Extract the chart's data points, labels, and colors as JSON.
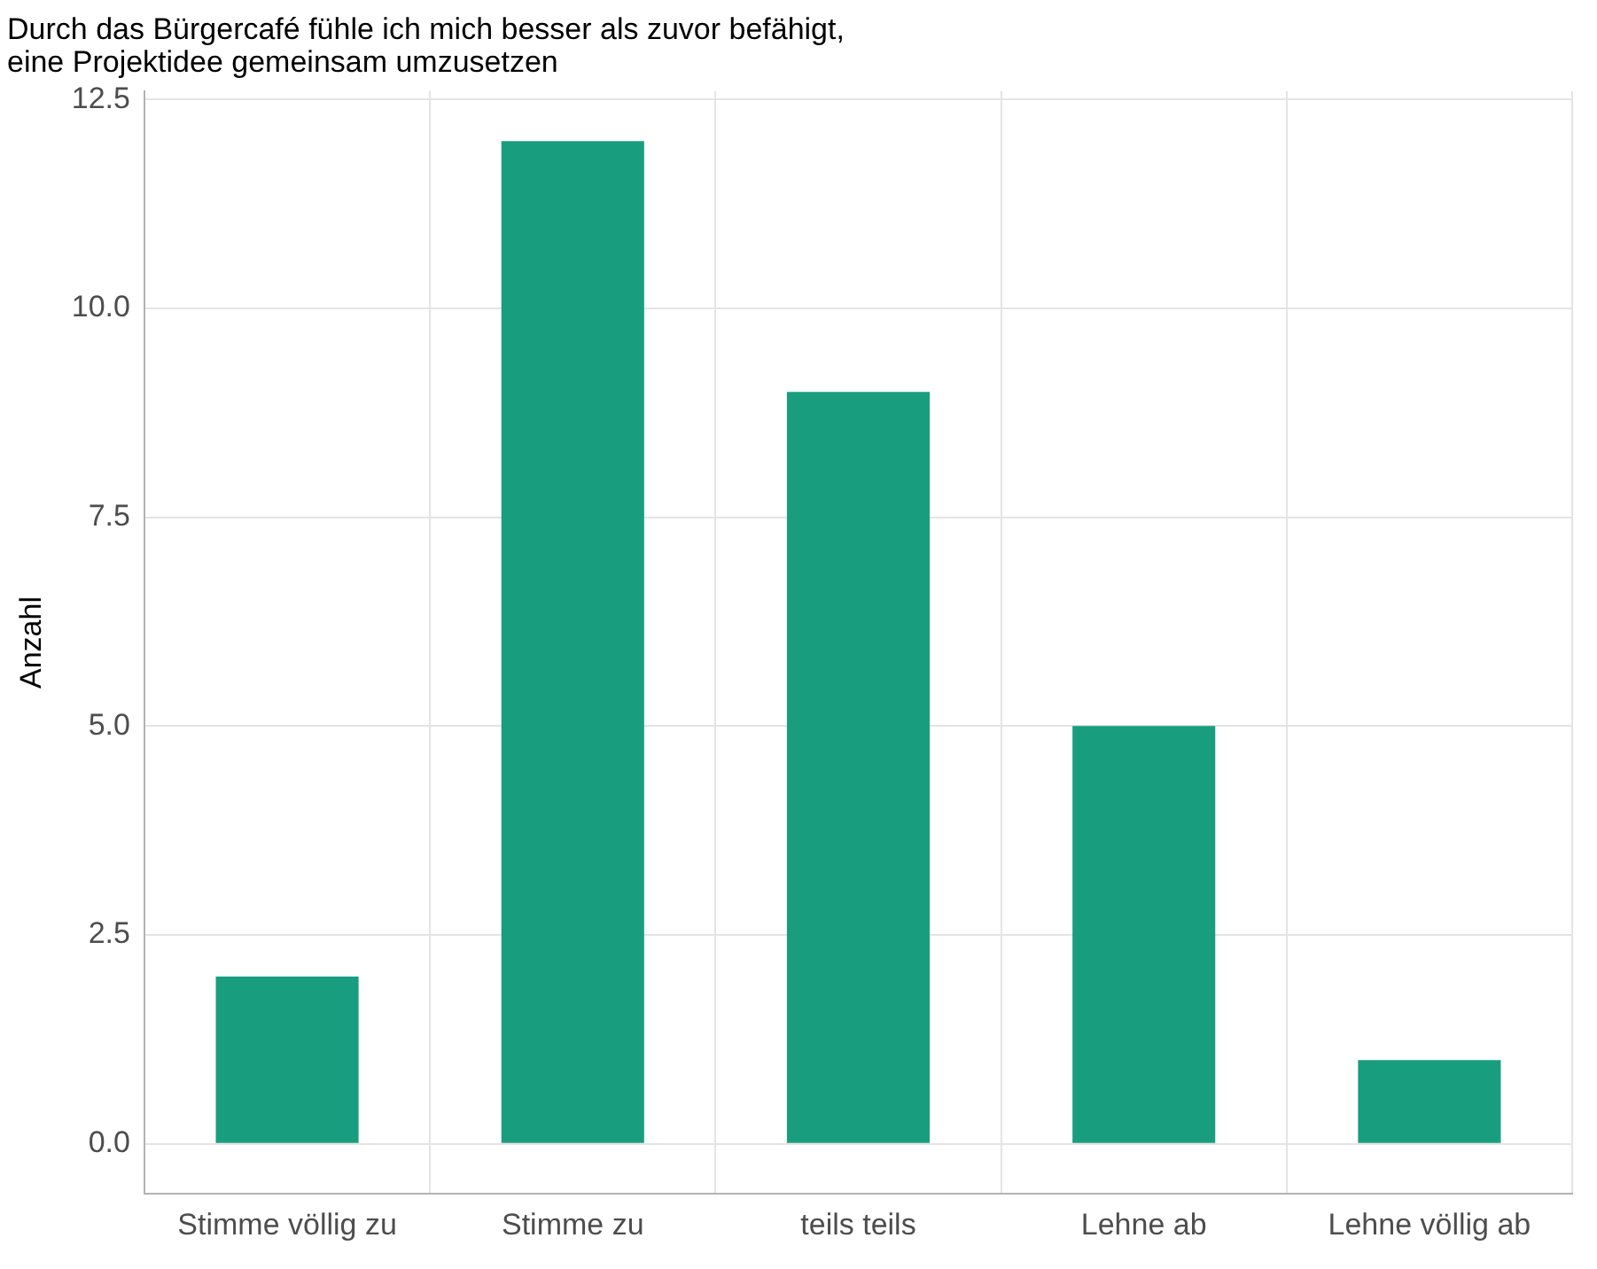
{
  "chart_data": {
    "type": "bar",
    "title": "Durch das Bürgercafé fühle ich mich besser als zuvor befähigt,\neine Projektidee gemeinsam umzusetzen",
    "ylabel": "Anzahl",
    "categories": [
      "Stimme völlig zu",
      "Stimme zu",
      "teils teils",
      "Lehne ab",
      "Lehne völlig ab"
    ],
    "values": [
      2,
      12,
      9,
      5,
      1
    ],
    "color": "#189e7e",
    "ylim": [
      -0.6,
      12.6
    ],
    "yticks": [
      {
        "value": 0,
        "label": "0.0"
      },
      {
        "value": 2.5,
        "label": "2.5"
      },
      {
        "value": 5,
        "label": "5.0"
      },
      {
        "value": 7.5,
        "label": "7.5"
      },
      {
        "value": 10,
        "label": "10.0"
      },
      {
        "value": 12.5,
        "label": "12.5"
      }
    ],
    "grid": true,
    "legend": false
  }
}
